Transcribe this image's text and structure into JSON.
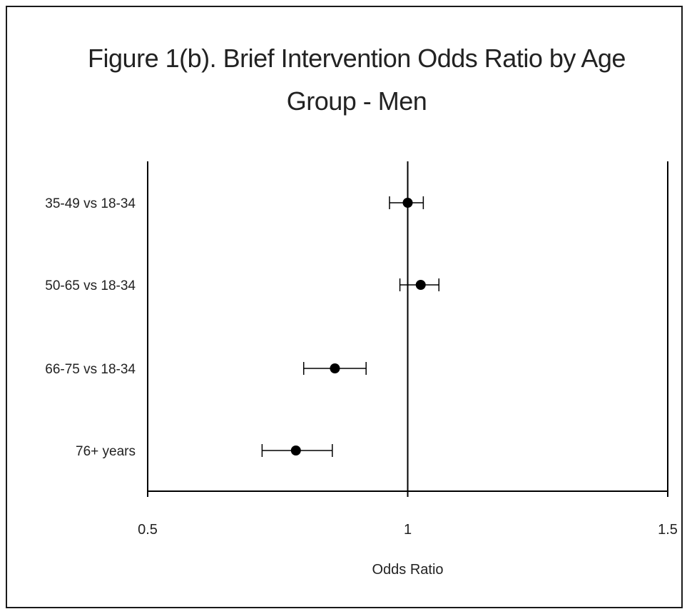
{
  "chart_data": {
    "type": "scatter",
    "title_lines": [
      "Figure 1(b). Brief Intervention Odds Ratio by Age",
      "Group - Men"
    ],
    "xlabel": "Odds Ratio",
    "ylabel": "",
    "xlim": [
      0.5,
      1.5
    ],
    "xticks": [
      {
        "value": 0.5,
        "label": "0.5"
      },
      {
        "value": 1.0,
        "label": "1"
      },
      {
        "value": 1.5,
        "label": "1.5"
      }
    ],
    "reference_line": 1.0,
    "grid": false,
    "legend": "none",
    "marker_color": "#000000",
    "categories": [
      "35-49 vs 18-34",
      "50-65 vs 18-34",
      "66-75 vs 18-34",
      "76+ years"
    ],
    "series": [
      {
        "values": [
          1.0,
          1.025,
          0.86,
          0.785
        ],
        "ci_lower": [
          0.965,
          0.985,
          0.8,
          0.72
        ],
        "ci_upper": [
          1.03,
          1.06,
          0.92,
          0.855
        ]
      }
    ]
  }
}
